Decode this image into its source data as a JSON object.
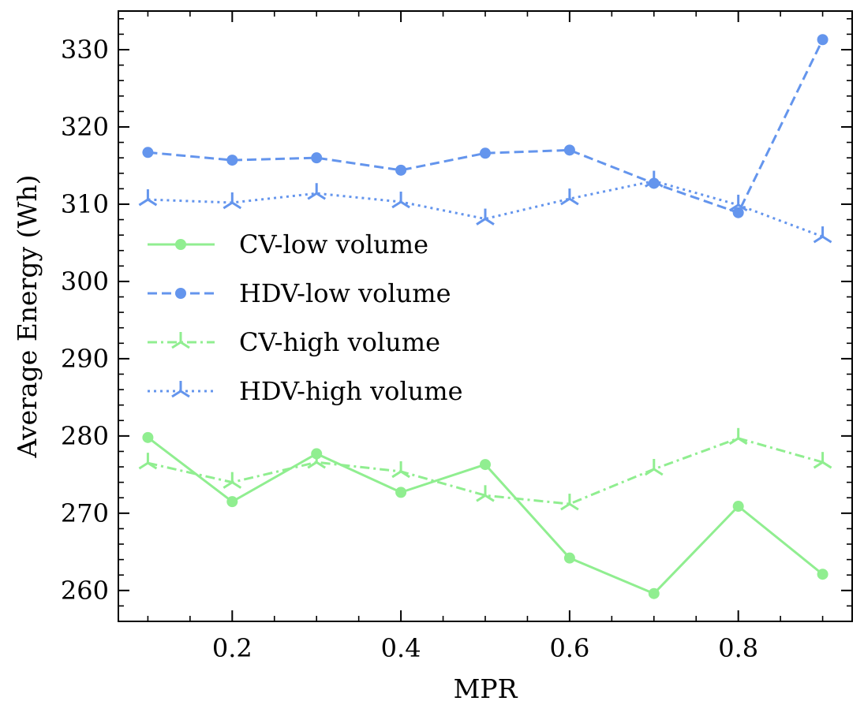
{
  "chart_data": {
    "type": "line",
    "title": "",
    "xlabel": "MPR",
    "ylabel": "Average Energy (Wh)",
    "xlim": [
      0.065,
      0.935
    ],
    "ylim": [
      256,
      335
    ],
    "x": [
      0.1,
      0.2,
      0.3,
      0.4,
      0.5,
      0.6,
      0.7,
      0.8,
      0.9
    ],
    "xticks": [
      0.2,
      0.4,
      0.6,
      0.8
    ],
    "xtick_labels": [
      "0.2",
      "0.4",
      "0.6",
      "0.8"
    ],
    "yticks": [
      260,
      270,
      280,
      290,
      300,
      310,
      320,
      330
    ],
    "ytick_labels": [
      "260",
      "270",
      "280",
      "290",
      "300",
      "310",
      "320",
      "330"
    ],
    "grid": false,
    "legend_position": "center-left",
    "series": [
      {
        "name": "CV-low volume",
        "color": "#90ee90",
        "dash": "solid",
        "marker": "circle",
        "values": [
          279.8,
          271.5,
          277.7,
          272.7,
          276.3,
          264.2,
          259.6,
          270.9,
          262.1
        ]
      },
      {
        "name": "HDV-low volume",
        "color": "#6495ed",
        "dash": "dashed",
        "marker": "circle",
        "values": [
          316.7,
          315.7,
          316.0,
          314.4,
          316.6,
          317.0,
          312.7,
          308.9,
          331.3
        ]
      },
      {
        "name": "CV-high volume",
        "color": "#90ee90",
        "dash": "dashdot",
        "marker": "tri",
        "values": [
          276.5,
          274.0,
          276.6,
          275.4,
          272.3,
          271.2,
          275.7,
          279.7,
          276.6
        ]
      },
      {
        "name": "HDV-high volume",
        "color": "#6495ed",
        "dash": "dotted",
        "marker": "tri",
        "values": [
          310.6,
          310.2,
          311.4,
          310.3,
          308.1,
          310.7,
          313.0,
          309.9,
          305.8
        ]
      }
    ]
  }
}
